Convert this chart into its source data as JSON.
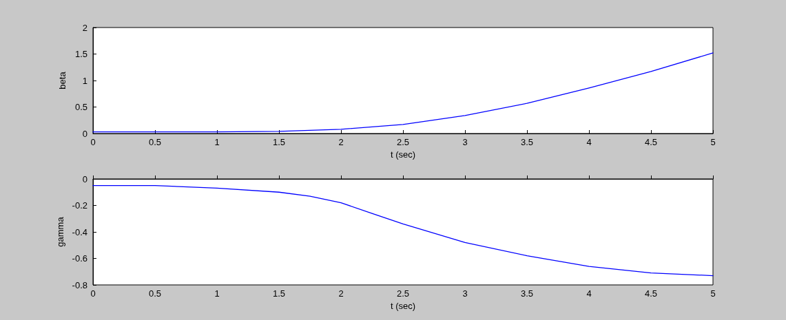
{
  "chart_data": [
    {
      "type": "line",
      "xlabel": "t (sec)",
      "ylabel": "beta",
      "x": [
        0,
        0.5,
        1,
        1.5,
        2,
        2.5,
        3,
        3.5,
        4,
        4.5,
        5
      ],
      "series": [
        {
          "color": "#0000ff",
          "values": [
            0.03,
            0.03,
            0.03,
            0.04,
            0.08,
            0.17,
            0.34,
            0.57,
            0.86,
            1.17,
            1.52
          ]
        }
      ],
      "xlim": [
        0,
        5
      ],
      "xticks": [
        0,
        0.5,
        1,
        1.5,
        2,
        2.5,
        3,
        3.5,
        4,
        4.5,
        5
      ],
      "ylim": [
        0,
        2
      ],
      "yticks": [
        0,
        0.5,
        1,
        1.5,
        2
      ],
      "grid": false,
      "marker": "none",
      "line_style": "solid"
    },
    {
      "type": "line",
      "xlabel": "t (sec)",
      "ylabel": "gamma",
      "x": [
        0,
        0.5,
        1,
        1.5,
        1.75,
        2,
        2.25,
        2.5,
        3,
        3.5,
        4,
        4.5,
        5
      ],
      "series": [
        {
          "color": "#0000ff",
          "values": [
            -0.05,
            -0.05,
            -0.07,
            -0.1,
            -0.13,
            -0.18,
            -0.26,
            -0.34,
            -0.48,
            -0.58,
            -0.66,
            -0.71,
            -0.73
          ]
        }
      ],
      "xlim": [
        0,
        5
      ],
      "xticks": [
        0,
        0.5,
        1,
        1.5,
        2,
        2.5,
        3,
        3.5,
        4,
        4.5,
        5
      ],
      "ylim": [
        -0.8,
        0
      ],
      "yticks": [
        -0.8,
        -0.6,
        -0.4,
        -0.2,
        0
      ],
      "grid": false,
      "marker": "none",
      "line_style": "solid"
    }
  ]
}
